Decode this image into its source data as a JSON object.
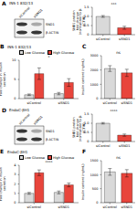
{
  "chart_data": [
    {
      "type": "bar",
      "ylabel": "SND1 protein fold change (normalized to β-ACTIN)",
      "categories": [
        "siControl",
        "siSND1"
      ],
      "values": [
        1,
        0.38
      ],
      "errors": [
        0.05,
        0.08
      ],
      "colors": [
        "#d9d9d9",
        "#e8453c"
      ],
      "ylim": [
        0,
        1.5
      ],
      "yticks": [
        0,
        0.5,
        {
          "value": 1,
          "label": "1.0"
        },
        1.5
      ],
      "annotation": "***"
    },
    {
      "type": "bar",
      "panel": "B",
      "title": "INS-1 832/13",
      "ylabel": "Fold change in insulin secretion",
      "categories": [
        "siControl",
        "siSND1"
      ],
      "series": [
        {
          "name": "Low Glucose",
          "color": "#d9d9d9",
          "values": [
            1,
            1.3
          ],
          "errors": [
            0.2,
            0.3
          ]
        },
        {
          "name": "High Glucose",
          "color": "#e8453c",
          "values": [
            6.5,
            4.2
          ],
          "errors": [
            1.5,
            1
          ]
        }
      ],
      "ylim": [
        0,
        10
      ],
      "yticks": [
        0,
        5,
        10
      ],
      "legend": "top",
      "annotation": "*"
    },
    {
      "type": "bar",
      "panel": "C",
      "ylabel": "Insulin content (ng/mL)",
      "categories": [
        "siControl",
        "siSND1"
      ],
      "values": [
        2100,
        1800
      ],
      "errors": [
        200,
        250
      ],
      "colors": [
        "#d9d9d9",
        "#e8453c"
      ],
      "ylim": [
        0,
        3000
      ],
      "yticks": [
        0,
        1000,
        2000,
        3000
      ],
      "annotation": "ns"
    },
    {
      "type": "bar",
      "ylabel": "SND1 protein fold change (normalized to β-ACTIN)",
      "categories": [
        "siControl",
        "siSND1"
      ],
      "values": [
        1,
        0.35
      ],
      "errors": [
        0.04,
        0.06
      ],
      "colors": [
        "#d9d9d9",
        "#e8453c"
      ],
      "ylim": [
        0,
        1.5
      ],
      "yticks": [
        0,
        0.5,
        {
          "value": 1,
          "label": "1.0"
        },
        1.5
      ],
      "annotation": "****"
    },
    {
      "type": "bar",
      "panel": "E",
      "title": "EndoC-βH1",
      "ylabel": "Fold change in insulin secretion",
      "categories": [
        "siControl",
        "siSND1"
      ],
      "series": [
        {
          "name": "Low Glucose",
          "color": "#d9d9d9",
          "values": [
            1,
            1.1
          ],
          "errors": [
            0.1,
            0.15
          ]
        },
        {
          "name": "High Glucose",
          "color": "#e8453c",
          "values": [
            3.2,
            1.9
          ],
          "errors": [
            0.3,
            0.2
          ]
        }
      ],
      "ylim": [
        0,
        4
      ],
      "yticks": [
        0,
        1,
        2,
        3,
        4
      ],
      "legend": "top",
      "annotation": "****"
    },
    {
      "type": "bar",
      "panel": "F",
      "ylabel": "Insulin content (ng/mL)",
      "categories": [
        "siControl",
        "siSND1"
      ],
      "values": [
        1100,
        1050
      ],
      "errors": [
        120,
        130
      ],
      "colors": [
        "#d9d9d9",
        "#e8453c"
      ],
      "ylim": [
        0,
        1500
      ],
      "yticks": [
        0,
        500,
        1000,
        1500
      ],
      "annotation": "ns"
    }
  ],
  "blots": [
    {
      "panel": "A",
      "title": "INS-1 832/13",
      "lanes": [
        "siControl",
        "siSND1"
      ],
      "bands": [
        "SND1",
        "β-ACTIN"
      ]
    },
    {
      "panel": "D",
      "title": "EndoC-βH1",
      "lanes": [
        "siControl",
        "siSND1"
      ],
      "bands": [
        "SND1",
        "β-ACTIN"
      ]
    }
  ]
}
